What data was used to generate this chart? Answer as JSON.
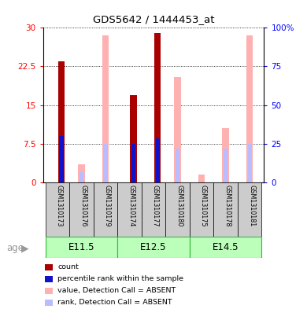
{
  "title": "GDS5642 / 1444453_at",
  "samples": [
    "GSM1310173",
    "GSM1310176",
    "GSM1310179",
    "GSM1310174",
    "GSM1310177",
    "GSM1310180",
    "GSM1310175",
    "GSM1310178",
    "GSM1310181"
  ],
  "age_groups": [
    {
      "label": "E11.5",
      "start": 0,
      "end": 3
    },
    {
      "label": "E12.5",
      "start": 3,
      "end": 6
    },
    {
      "label": "E14.5",
      "start": 6,
      "end": 9
    }
  ],
  "count_values": [
    23.5,
    0,
    0,
    17.0,
    29.0,
    0,
    0,
    0,
    0
  ],
  "rank_values": [
    30.0,
    0,
    0,
    25.0,
    28.5,
    0,
    0,
    0,
    0
  ],
  "absent_value_values": [
    0,
    3.5,
    28.5,
    0,
    0,
    20.5,
    1.5,
    10.5,
    28.5
  ],
  "absent_rank_values": [
    0,
    7.0,
    25.0,
    0,
    0,
    22.0,
    0,
    22.0,
    25.0
  ],
  "ylim_left": [
    0,
    30
  ],
  "ylim_right": [
    0,
    100
  ],
  "yticks_left": [
    0,
    7.5,
    15,
    22.5,
    30
  ],
  "yticks_right": [
    0,
    25,
    50,
    75,
    100
  ],
  "color_count": "#aa0000",
  "color_rank": "#1111cc",
  "color_absent_value": "#ffb0b0",
  "color_absent_rank": "#bbbbff",
  "color_age_bg": "#bbffbb",
  "color_age_border": "#33bb33",
  "color_sample_bg": "#cccccc",
  "color_sample_border": "#888888",
  "bar_width": 0.28
}
